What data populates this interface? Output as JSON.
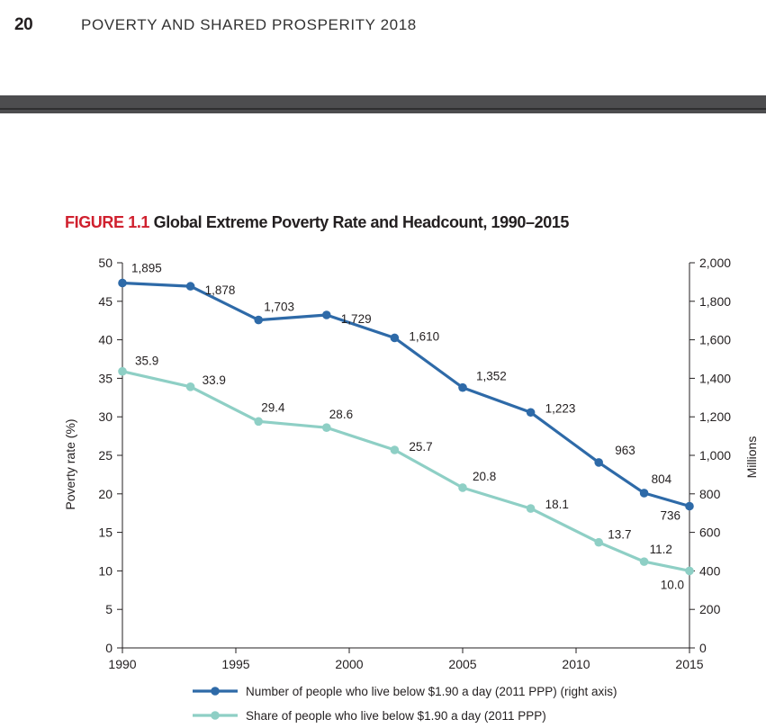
{
  "header": {
    "page_number": "20",
    "running_title": "POVERTY AND SHARED PROSPERITY 2018"
  },
  "figure": {
    "label": "FIGURE 1.1",
    "title": "Global Extreme Poverty Rate and Headcount, 1990–2015"
  },
  "chart_data": {
    "type": "line",
    "title": "",
    "xlabel": "",
    "ylabel": "Poverty rate (%)",
    "y2label": "Millions",
    "xlim": [
      1990,
      2015
    ],
    "ylim": [
      0,
      50
    ],
    "y2lim": [
      0,
      2000
    ],
    "x_ticks": [
      1990,
      1995,
      2000,
      2005,
      2010,
      2015
    ],
    "y_ticks": [
      0,
      5,
      10,
      15,
      20,
      25,
      30,
      35,
      40,
      45,
      50
    ],
    "y2_ticks": [
      "0",
      "200",
      "400",
      "600",
      "800",
      "1,000",
      "1,200",
      "1,400",
      "1,600",
      "1,800",
      "2,000"
    ],
    "y2_tick_values": [
      0,
      200,
      400,
      600,
      800,
      1000,
      1200,
      1400,
      1600,
      1800,
      2000
    ],
    "grid": false,
    "legend_position": "bottom",
    "series": [
      {
        "name": "Number of people who live below $1.90 a day (2011 PPP) (right axis)",
        "axis": "right",
        "color": "#2e6aa8",
        "x": [
          1990,
          1993,
          1996,
          1999,
          2002,
          2005,
          2008,
          2011,
          2013,
          2015
        ],
        "values": [
          1895,
          1878,
          1703,
          1729,
          1610,
          1352,
          1223,
          963,
          804,
          736
        ],
        "labels": [
          "1,895",
          "1,878",
          "1,703",
          "1,729",
          "1,610",
          "1,352",
          "1,223",
          "963",
          "804",
          "736"
        ]
      },
      {
        "name": "Share of people who live below $1.90 a day (2011 PPP)",
        "axis": "left",
        "color": "#8ecfc5",
        "x": [
          1990,
          1993,
          1996,
          1999,
          2002,
          2005,
          2008,
          2011,
          2013,
          2015
        ],
        "values": [
          35.9,
          33.9,
          29.4,
          28.6,
          25.7,
          20.8,
          18.1,
          13.7,
          11.2,
          10.0
        ],
        "labels": [
          "35.9",
          "33.9",
          "29.4",
          "28.6",
          "25.7",
          "20.8",
          "18.1",
          "13.7",
          "11.2",
          "10.0"
        ]
      }
    ]
  }
}
